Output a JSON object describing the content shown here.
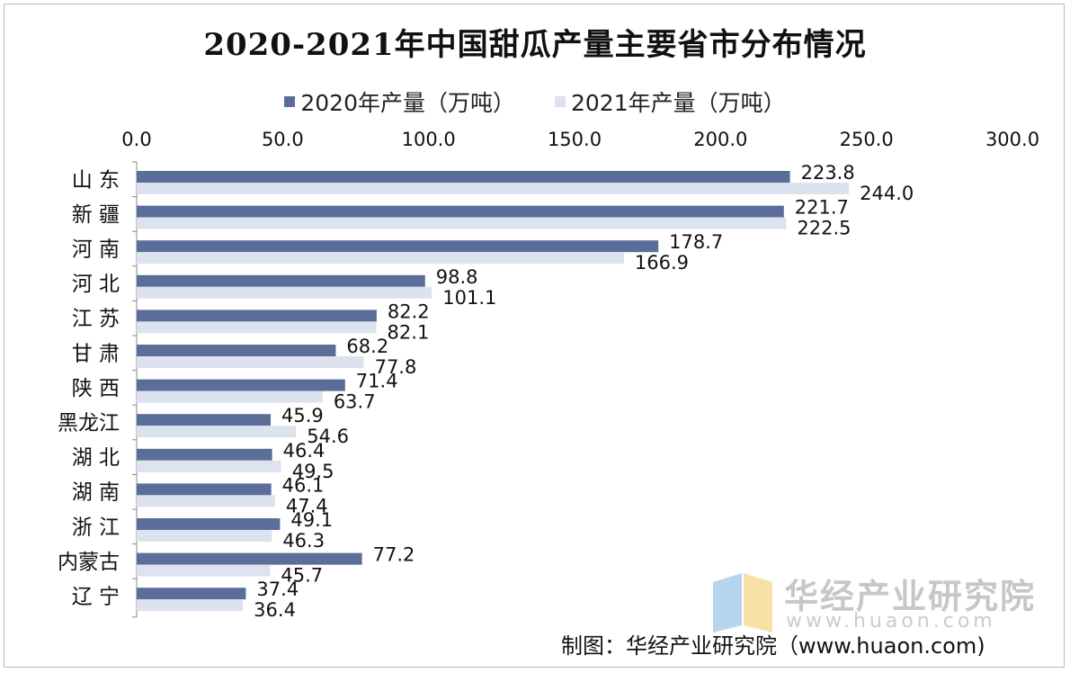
{
  "chart_data": {
    "type": "bar",
    "orientation": "horizontal",
    "title": "2020-2021年中国甜瓜产量主要省市分布情况",
    "categories": [
      "山 东",
      "新 疆",
      "河 南",
      "河 北",
      "江 苏",
      "甘 肃",
      "陕 西",
      "黑龙江",
      "湖 北",
      "湖 南",
      "浙 江",
      "内蒙古",
      "辽 宁"
    ],
    "series": [
      {
        "name": "2020年产量（万吨）",
        "color": "#5b6e9a",
        "values": [
          223.8,
          221.7,
          178.7,
          98.8,
          82.2,
          68.2,
          71.4,
          45.9,
          46.4,
          46.1,
          49.1,
          77.2,
          37.4
        ]
      },
      {
        "name": "2021年产量（万吨）",
        "color": "#dde3ee",
        "values": [
          244.0,
          222.5,
          166.9,
          101.1,
          82.1,
          77.8,
          63.7,
          54.6,
          49.5,
          47.4,
          46.3,
          45.7,
          36.4
        ]
      }
    ],
    "xlim": [
      0,
      300
    ],
    "xticks": [
      "0.0",
      "50.0",
      "100.0",
      "150.0",
      "200.0",
      "250.0",
      "300.0"
    ],
    "xaxis_position": "top",
    "grid": false,
    "legend_position": "top"
  },
  "watermark": {
    "name": "华经产业研究院",
    "url": "www.huaon.com",
    "logo_colors": [
      "#9cc8e8",
      "#f5d78a"
    ]
  },
  "source_note": "制图：华经产业研究院（www.huaon.com)"
}
